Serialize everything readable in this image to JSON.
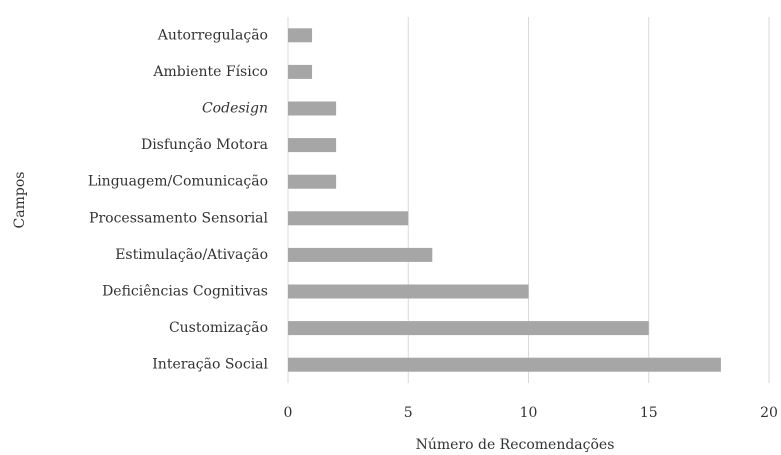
{
  "chart_data": {
    "type": "bar",
    "orientation": "horizontal",
    "categories": [
      "Autorregulação",
      "Ambiente Físico",
      "Codesign",
      "Disfunção Motora",
      "Linguagem/Comunicação",
      "Processamento Sensorial",
      "Estimulação/Ativação",
      "Deficiências Cognitivas",
      "Customização",
      "Interação Social"
    ],
    "values": [
      1,
      1,
      2,
      2,
      2,
      5,
      6,
      10,
      15,
      18
    ],
    "color": "#a6a6a6",
    "xlim": [
      0,
      20
    ],
    "xticks": [
      0,
      5,
      10,
      15,
      20
    ],
    "grid": true,
    "x_label": "Número de Recomendações",
    "y_label": "Campos"
  }
}
